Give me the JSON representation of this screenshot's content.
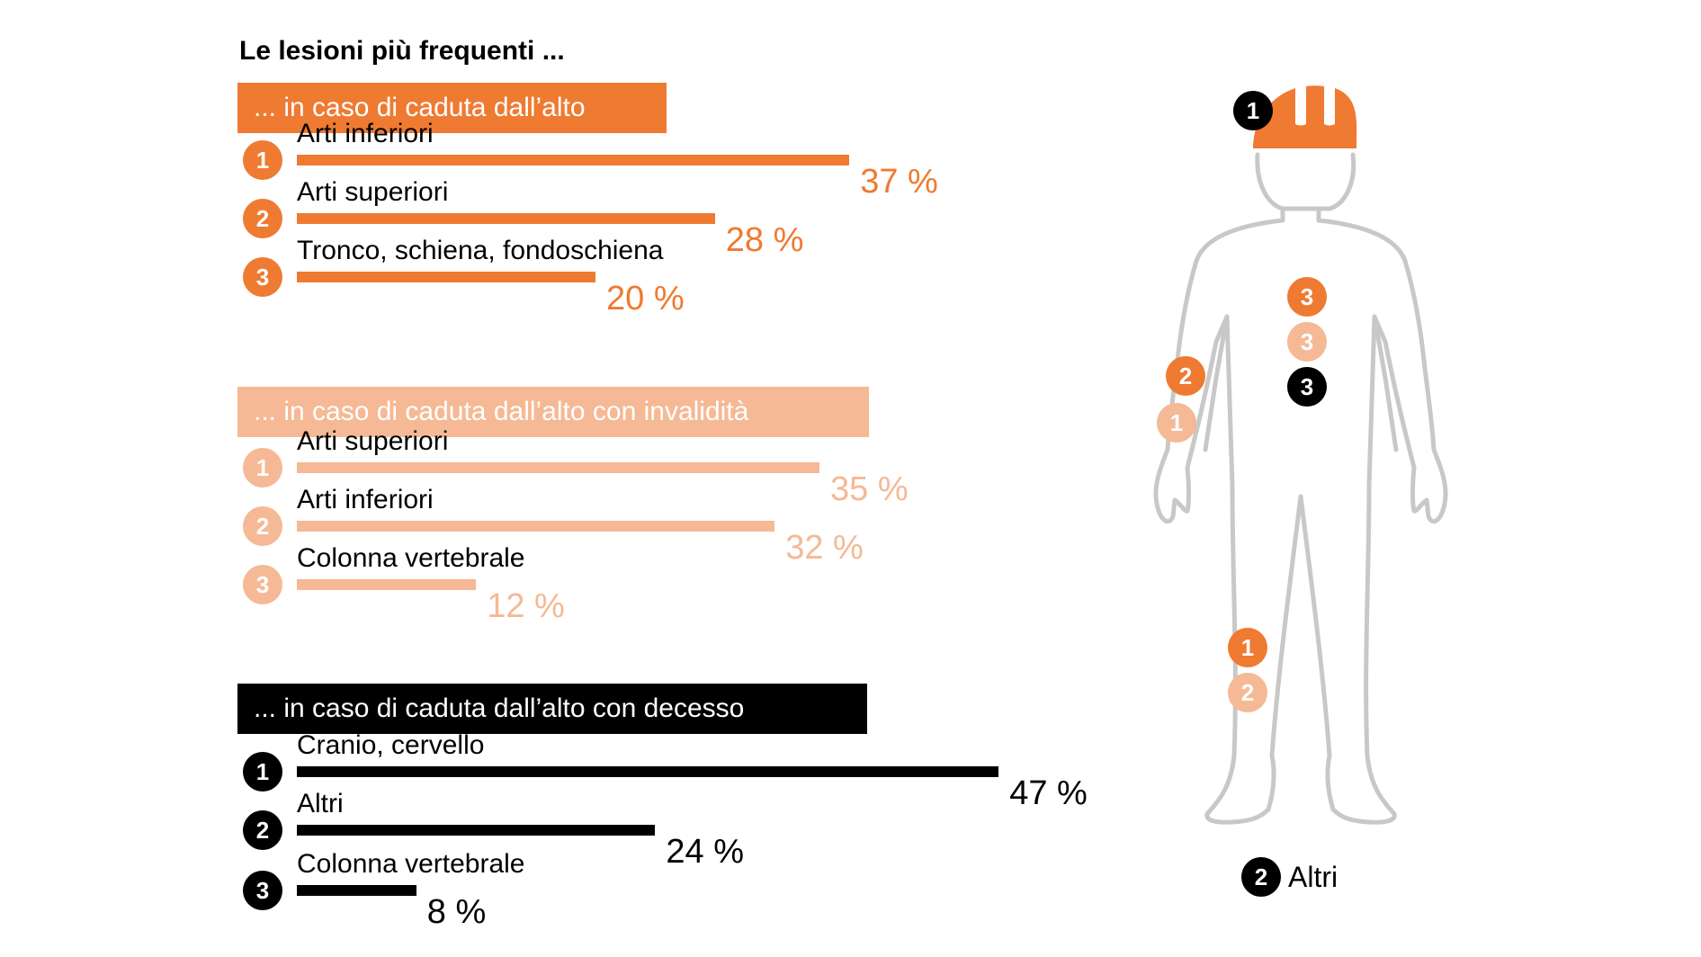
{
  "title": "Le lesioni più frequenti ...",
  "colors": {
    "dark_orange": "#ef7a31",
    "light_orange": "#f5b995",
    "black": "#000000",
    "figure_outline": "#c8c8c8"
  },
  "chart_data": [
    {
      "type": "bar",
      "orientation": "horizontal",
      "title": "... in caso di caduta dall’alto",
      "color": "#ef7a31",
      "ranks": [
        "1",
        "2",
        "3"
      ],
      "categories": [
        "Arti inferiori",
        "Arti superiori",
        "Tronco, schiena, fondoschiena"
      ],
      "values": [
        37,
        28,
        20
      ],
      "value_labels": [
        "37 %",
        "28 %",
        "20 %"
      ],
      "unit": "%"
    },
    {
      "type": "bar",
      "orientation": "horizontal",
      "title": "... in caso di caduta dall’alto con invalidità",
      "color": "#f5b995",
      "ranks": [
        "1",
        "2",
        "3"
      ],
      "categories": [
        "Arti superiori",
        "Arti inferiori",
        "Colonna vertebrale"
      ],
      "values": [
        35,
        32,
        12
      ],
      "value_labels": [
        "35 %",
        "32 %",
        "12 %"
      ],
      "unit": "%"
    },
    {
      "type": "bar",
      "orientation": "horizontal",
      "title": "... in caso di caduta dall’alto con decesso",
      "color": "#000000",
      "ranks": [
        "1",
        "2",
        "3"
      ],
      "categories": [
        "Cranio, cervello",
        "Altri",
        "Colonna vertebrale"
      ],
      "values": [
        47,
        24,
        8
      ],
      "value_labels": [
        "47 %",
        "24 %",
        "8 %"
      ],
      "unit": "%"
    }
  ],
  "body_figure": {
    "markers": [
      {
        "number": "1",
        "color": "#000000",
        "body_part": "head"
      },
      {
        "number": "3",
        "color": "#ef7a31",
        "body_part": "trunk"
      },
      {
        "number": "3",
        "color": "#f5b995",
        "body_part": "trunk"
      },
      {
        "number": "3",
        "color": "#000000",
        "body_part": "trunk"
      },
      {
        "number": "2",
        "color": "#ef7a31",
        "body_part": "arm"
      },
      {
        "number": "1",
        "color": "#f5b995",
        "body_part": "arm"
      },
      {
        "number": "1",
        "color": "#ef7a31",
        "body_part": "leg"
      },
      {
        "number": "2",
        "color": "#f5b995",
        "body_part": "leg"
      }
    ],
    "legend": {
      "number": "2",
      "color": "#000000",
      "label": "Altri"
    }
  }
}
